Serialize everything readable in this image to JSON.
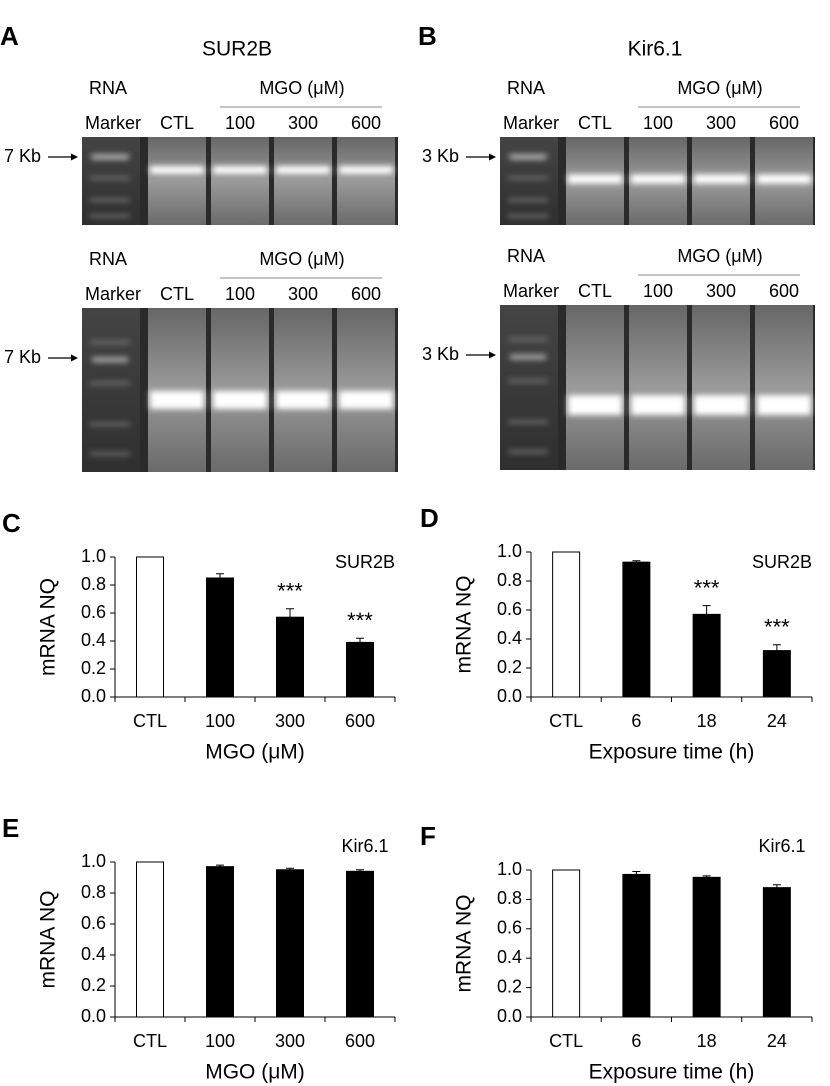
{
  "gels": [
    {
      "letter": "A",
      "title": "SUR2B",
      "blots": [
        {
          "rna": "RNA",
          "marker": "Marker",
          "group": "MGO (μM)",
          "lanes": [
            "CTL",
            "100",
            "300",
            "600"
          ],
          "size": "7 Kb"
        },
        {
          "rna": "RNA",
          "marker": "Marker",
          "group": "MGO (μM)",
          "lanes": [
            "CTL",
            "100",
            "300",
            "600"
          ],
          "size": "7 Kb"
        }
      ]
    },
    {
      "letter": "B",
      "title": "Kir6.1",
      "blots": [
        {
          "rna": "RNA",
          "marker": "Marker",
          "group": "MGO (μM)",
          "lanes": [
            "CTL",
            "100",
            "300",
            "600"
          ],
          "size": "3 Kb"
        },
        {
          "rna": "RNA",
          "marker": "Marker",
          "group": "MGO (μM)",
          "lanes": [
            "CTL",
            "100",
            "300",
            "600"
          ],
          "size": "3 Kb"
        }
      ]
    }
  ],
  "chart_data": [
    {
      "type": "bar",
      "letter": "C",
      "label": "SUR2B",
      "categories": [
        "CTL",
        "100",
        "300",
        "600"
      ],
      "values": [
        1.0,
        0.85,
        0.57,
        0.39
      ],
      "errors": [
        0,
        0.03,
        0.06,
        0.03
      ],
      "colors": [
        "#ffffff",
        "#000000",
        "#000000",
        "#000000"
      ],
      "xlabel": "MGO (μM)",
      "ylabel": "mRNA NQ",
      "ylim": [
        0,
        1
      ],
      "yticks": [
        {
          "value": 0,
          "label": "0.0"
        },
        0.2,
        0.4,
        0.6,
        0.8,
        {
          "value": 1,
          "label": "1.0"
        }
      ],
      "annotations": [
        {
          "category": "300",
          "text": "***"
        },
        {
          "category": "600",
          "text": "***"
        }
      ]
    },
    {
      "type": "bar",
      "letter": "D",
      "label": "SUR2B",
      "categories": [
        "CTL",
        "6",
        "18",
        "24"
      ],
      "values": [
        1.0,
        0.93,
        0.57,
        0.32
      ],
      "errors": [
        0,
        0.01,
        0.06,
        0.04
      ],
      "colors": [
        "#ffffff",
        "#000000",
        "#000000",
        "#000000"
      ],
      "xlabel": "Exposure time (h)",
      "ylabel": "mRNA NQ",
      "ylim": [
        0,
        1
      ],
      "yticks": [
        {
          "value": 0,
          "label": "0.0"
        },
        0.2,
        0.4,
        0.6,
        0.8,
        {
          "value": 1,
          "label": "1.0"
        }
      ],
      "annotations": [
        {
          "category": "18",
          "text": "***"
        },
        {
          "category": "24",
          "text": "***"
        }
      ]
    },
    {
      "type": "bar",
      "letter": "E",
      "label": "Kir6.1",
      "categories": [
        "CTL",
        "100",
        "300",
        "600"
      ],
      "values": [
        1.0,
        0.97,
        0.95,
        0.94
      ],
      "errors": [
        0,
        0.01,
        0.01,
        0.01
      ],
      "colors": [
        "#ffffff",
        "#000000",
        "#000000",
        "#000000"
      ],
      "xlabel": "MGO (μM)",
      "ylabel": "mRNA NQ",
      "ylim": [
        0,
        1
      ],
      "yticks": [
        {
          "value": 0,
          "label": "0.0"
        },
        0.2,
        0.4,
        0.6,
        0.8,
        {
          "value": 1,
          "label": "1.0"
        }
      ],
      "annotations": []
    },
    {
      "type": "bar",
      "letter": "F",
      "label": "Kir6.1",
      "categories": [
        "CTL",
        "6",
        "18",
        "24"
      ],
      "values": [
        1.0,
        0.97,
        0.95,
        0.88
      ],
      "errors": [
        0,
        0.02,
        0.01,
        0.02
      ],
      "colors": [
        "#ffffff",
        "#000000",
        "#000000",
        "#000000"
      ],
      "xlabel": "Exposure time (h)",
      "ylabel": "mRNA NQ",
      "ylim": [
        0,
        1
      ],
      "yticks": [
        {
          "value": 0,
          "label": "0.0"
        },
        0.2,
        0.4,
        0.6,
        0.8,
        {
          "value": 1,
          "label": "1.0"
        }
      ],
      "annotations": []
    }
  ]
}
